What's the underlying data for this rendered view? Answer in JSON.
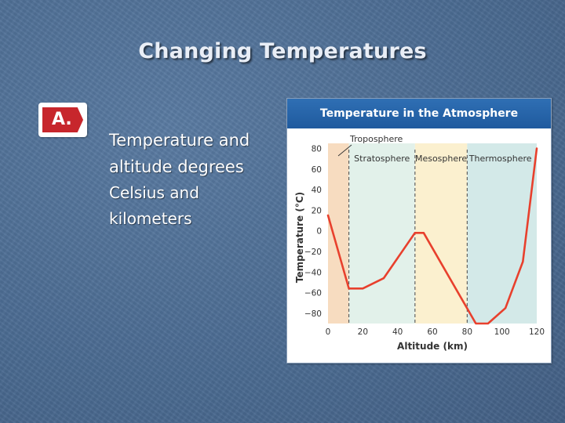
{
  "slide": {
    "title": "Changing Temperatures",
    "marker_label": "A.",
    "body_lines": [
      "Temperature and",
      "altitude degrees",
      "Celsius and",
      "kilometers"
    ]
  },
  "chart_data": {
    "type": "line",
    "title": "Temperature in the Atmosphere",
    "xlabel": "Altitude (km)",
    "ylabel": "Temperature (°C)",
    "xlim": [
      0,
      120
    ],
    "ylim": [
      -90,
      85
    ],
    "x_ticks": [
      0,
      20,
      40,
      60,
      80,
      100,
      120
    ],
    "y_ticks": [
      80,
      60,
      40,
      20,
      0,
      -20,
      -40,
      -60,
      -80
    ],
    "tick_labels_y": [
      "80",
      "60",
      "40",
      "20",
      "0",
      "−20",
      "−40",
      "−60",
      "−80"
    ],
    "grid": false,
    "series": [
      {
        "x": [
          0,
          12,
          20,
          32,
          50,
          55,
          85,
          92,
          102,
          112,
          120
        ],
        "y": [
          15,
          -56,
          -56,
          -46,
          -2,
          -2,
          -90,
          -90,
          -75,
          -30,
          80
        ]
      }
    ],
    "regions": [
      {
        "label": "Troposphere",
        "from": 0,
        "to": 12,
        "color": "#f7dcc0"
      },
      {
        "label": "Stratosphere",
        "from": 12,
        "to": 50,
        "color": "#e2f1ea"
      },
      {
        "label": "Mesosphere",
        "from": 50,
        "to": 80,
        "color": "#fbf0cf"
      },
      {
        "label": "Thermosphere",
        "from": 80,
        "to": 120,
        "color": "#d3e9e8"
      }
    ],
    "colors": {
      "line": "#e8402d",
      "boundary": "#555555"
    }
  }
}
